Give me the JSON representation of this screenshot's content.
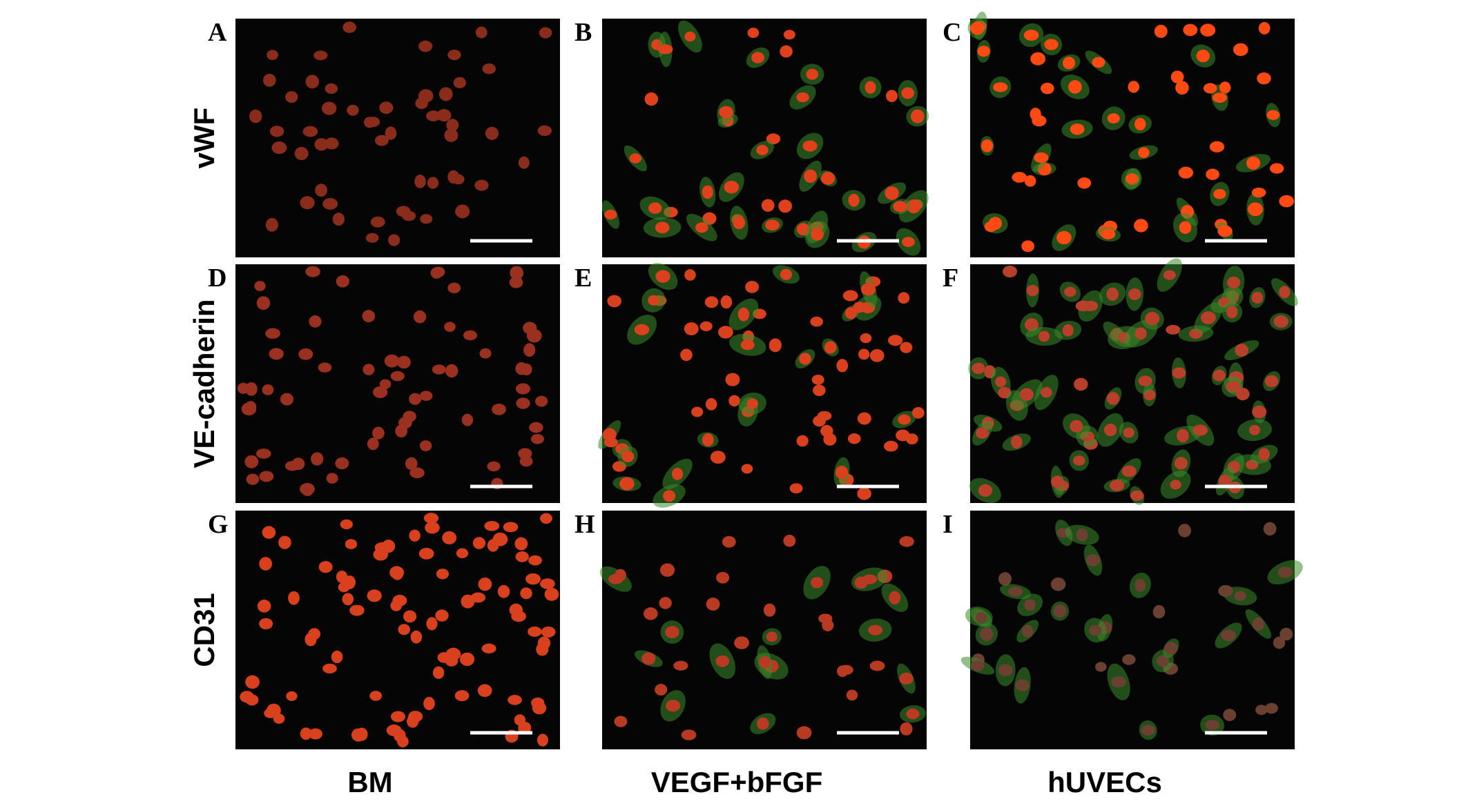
{
  "panels": [
    {
      "letter": "A"
    },
    {
      "letter": "B"
    },
    {
      "letter": "C"
    },
    {
      "letter": "D"
    },
    {
      "letter": "E"
    },
    {
      "letter": "F"
    },
    {
      "letter": "G"
    },
    {
      "letter": "H"
    },
    {
      "letter": "I"
    }
  ],
  "row_labels": [
    "vWF",
    "VE-cadherin",
    "CD31"
  ],
  "column_labels": [
    "BM",
    "VEGF+bFGF",
    "hUVECs"
  ]
}
